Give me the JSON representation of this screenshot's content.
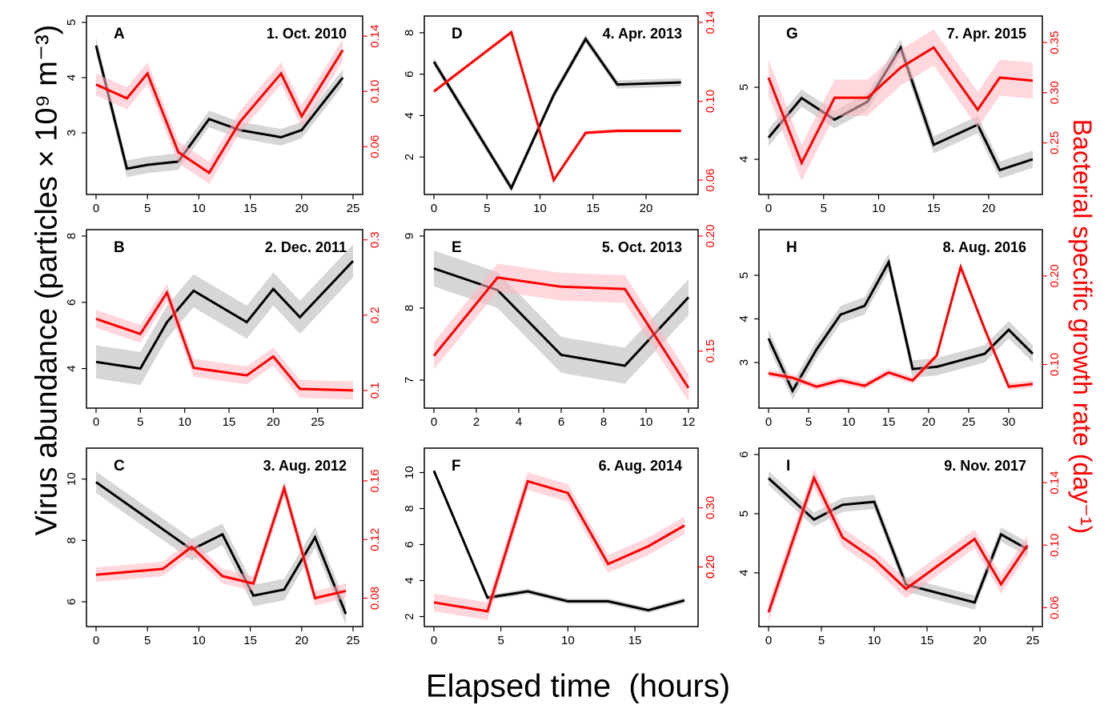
{
  "figure": {
    "ylabel": "Virus abundance (particles × 10⁹ m⁻³)",
    "ylabel2": "Bacterial specific growth rate (day⁻¹)",
    "xlabel": "Elapsed time  (hours)"
  },
  "colors": {
    "virus": "#000000",
    "virus_band": "#c8c8c8",
    "bacteria": "#ff0000",
    "bacteria_band": "#ffb6c1"
  },
  "chart_data": [
    {
      "type": "line",
      "panel": "A",
      "title": "1. Oct. 2010",
      "xlim": [
        0,
        25
      ],
      "xticks": [
        0,
        5,
        10,
        15,
        20,
        25
      ],
      "ylim": [
        2,
        5
      ],
      "yticks": [
        3,
        4,
        5
      ],
      "y2lim": [
        0.03,
        0.15
      ],
      "y2ticks": [
        "0.06",
        "0.10",
        "0.14"
      ],
      "series": [
        {
          "axis": "left",
          "x": [
            0,
            3,
            5,
            8,
            11,
            14,
            18,
            20,
            24
          ],
          "values": [
            4.58,
            2.35,
            2.42,
            2.48,
            3.25,
            3.05,
            2.92,
            3.05,
            4.0
          ],
          "band": 0.15
        },
        {
          "axis": "right",
          "x": [
            0,
            3,
            5,
            8,
            11,
            14,
            18,
            20,
            24
          ],
          "values": [
            0.105,
            0.095,
            0.113,
            0.056,
            0.041,
            0.078,
            0.113,
            0.082,
            0.13
          ],
          "band": 0.008
        }
      ]
    },
    {
      "type": "line",
      "panel": "D",
      "title": "4. Apr. 2013",
      "xlim": [
        0,
        24
      ],
      "xticks": [
        0,
        5,
        10,
        15,
        20
      ],
      "ylim": [
        0.5,
        8.5
      ],
      "yticks": [
        2,
        4,
        6,
        8
      ],
      "y2lim": [
        0.056,
        0.14
      ],
      "y2ticks": [
        "0.06",
        "0.10",
        "0.14"
      ],
      "series": [
        {
          "axis": "left",
          "x": [
            0,
            7.3,
            11.3,
            14.3,
            17.3,
            23.3
          ],
          "values": [
            6.6,
            0.5,
            5.0,
            7.7,
            5.5,
            5.6
          ],
          "band": 0.2
        },
        {
          "axis": "right",
          "x": [
            0,
            7.3,
            11.3,
            14.3,
            17.3,
            23.3
          ],
          "values": [
            0.105,
            0.135,
            0.06,
            0.084,
            0.085,
            0.085
          ],
          "band": 0.001
        }
      ]
    },
    {
      "type": "line",
      "panel": "G",
      "title": "7. Apr. 2015",
      "xlim": [
        0,
        24
      ],
      "xticks": [
        0,
        5,
        10,
        15,
        20
      ],
      "ylim": [
        3.6,
        5.9
      ],
      "yticks": [
        4,
        5
      ],
      "y2lim": [
        0.205,
        0.37
      ],
      "y2ticks": [
        "0.25",
        "0.30",
        "0.35"
      ],
      "series": [
        {
          "axis": "left",
          "x": [
            0,
            3,
            6,
            9,
            12,
            15,
            19,
            21,
            24
          ],
          "values": [
            4.3,
            4.85,
            4.55,
            4.8,
            5.55,
            4.2,
            4.48,
            3.85,
            4.0
          ],
          "band": 0.12
        },
        {
          "axis": "right",
          "x": [
            0,
            3,
            6,
            9,
            12,
            15,
            19,
            21,
            24
          ],
          "values": [
            0.315,
            0.23,
            0.295,
            0.295,
            0.325,
            0.345,
            0.283,
            0.315,
            0.312
          ],
          "band": 0.018
        }
      ]
    },
    {
      "type": "line",
      "panel": "B",
      "title": "2. Dec. 2011",
      "xlim": [
        0,
        29
      ],
      "xticks": [
        0,
        5,
        10,
        15,
        20,
        25
      ],
      "ylim": [
        3.0,
        8.0
      ],
      "yticks": [
        4,
        6,
        8
      ],
      "y2lim": [
        0.085,
        0.305
      ],
      "y2ticks": [
        "0.1",
        "0.2",
        "0.3"
      ],
      "series": [
        {
          "axis": "left",
          "x": [
            0,
            5,
            8,
            11,
            17,
            20,
            23,
            29
          ],
          "values": [
            4.2,
            4.0,
            5.4,
            6.35,
            5.4,
            6.4,
            5.55,
            7.25
          ],
          "band": 0.5
        },
        {
          "axis": "right",
          "x": [
            0,
            5,
            8,
            11,
            17,
            20,
            23,
            29
          ],
          "values": [
            0.195,
            0.175,
            0.23,
            0.13,
            0.12,
            0.145,
            0.102,
            0.1
          ],
          "band": 0.012
        }
      ]
    },
    {
      "type": "line",
      "panel": "E",
      "title": "5. Oct. 2013",
      "xlim": [
        0,
        12
      ],
      "xticks": [
        0,
        2,
        4,
        6,
        8,
        10,
        12
      ],
      "ylim": [
        6.7,
        9.0
      ],
      "yticks": [
        7,
        8,
        9
      ],
      "y2lim": [
        0.128,
        0.2
      ],
      "y2ticks": [
        "0.15",
        "0.20"
      ],
      "series": [
        {
          "axis": "left",
          "x": [
            0,
            3,
            6,
            9,
            12
          ],
          "values": [
            8.55,
            8.25,
            7.35,
            7.2,
            8.15
          ],
          "band": 0.25
        },
        {
          "axis": "right",
          "x": [
            0,
            3,
            6,
            9,
            12
          ],
          "values": [
            0.148,
            0.182,
            0.178,
            0.177,
            0.134
          ],
          "band": 0.006
        }
      ]
    },
    {
      "type": "line",
      "panel": "H",
      "title": "8. Aug. 2016",
      "xlim": [
        0,
        33
      ],
      "xticks": [
        0,
        5,
        10,
        15,
        20,
        25,
        30
      ],
      "ylim": [
        2.1,
        5.9
      ],
      "yticks": [
        3,
        4,
        5
      ],
      "y2lim": [
        0.058,
        0.245
      ],
      "y2ticks": [
        "0.10",
        "0.20"
      ],
      "series": [
        {
          "axis": "left",
          "x": [
            0,
            3,
            6,
            9,
            12,
            15,
            18,
            21,
            27,
            30,
            33
          ],
          "values": [
            3.55,
            2.35,
            3.3,
            4.1,
            4.3,
            5.3,
            2.85,
            2.9,
            3.2,
            3.75,
            3.2
          ],
          "band": 0.2
        },
        {
          "axis": "right",
          "x": [
            0,
            3,
            6,
            9,
            12,
            15,
            18,
            21,
            24,
            27,
            30,
            33
          ],
          "values": [
            0.09,
            0.085,
            0.075,
            0.082,
            0.076,
            0.091,
            0.082,
            0.11,
            0.21,
            0.14,
            0.075,
            0.078
          ],
          "band": 0.004
        }
      ]
    },
    {
      "type": "line",
      "panel": "C",
      "title": "3. Aug. 2012",
      "xlim": [
        0,
        25
      ],
      "xticks": [
        0,
        5,
        10,
        15,
        20,
        25
      ],
      "ylim": [
        5.4,
        10.8
      ],
      "yticks": [
        6,
        8,
        10
      ],
      "y2lim": [
        0.065,
        0.178
      ],
      "y2ticks": [
        "0.08",
        "0.12",
        "0.16"
      ],
      "series": [
        {
          "axis": "left",
          "x": [
            0,
            9.3,
            12.3,
            15.3,
            18.3,
            21.3,
            24.3
          ],
          "values": [
            9.9,
            7.7,
            8.2,
            6.2,
            6.4,
            8.1,
            5.6
          ],
          "band": 0.35
        },
        {
          "axis": "right",
          "x": [
            0,
            6.5,
            9.3,
            12.3,
            15.3,
            18.3,
            21.3,
            24.3
          ],
          "values": [
            0.096,
            0.1,
            0.115,
            0.095,
            0.09,
            0.155,
            0.08,
            0.085
          ],
          "band": 0.005
        }
      ]
    },
    {
      "type": "line",
      "panel": "F",
      "title": "6. Aug. 2014",
      "xlim": [
        0,
        19
      ],
      "xticks": [
        0,
        5,
        10,
        15
      ],
      "ylim": [
        1.8,
        11.0
      ],
      "yticks": [
        2,
        4,
        6,
        8,
        10
      ],
      "y2lim": [
        0.11,
        0.39
      ],
      "y2ticks": [
        "0.20",
        "0.20",
        "0.30"
      ],
      "series": [
        {
          "axis": "left",
          "x": [
            0,
            4,
            7,
            10,
            13,
            16,
            18.7
          ],
          "values": [
            10.1,
            3.05,
            3.4,
            2.85,
            2.85,
            2.35,
            2.9
          ],
          "band": 0.15
        },
        {
          "axis": "right",
          "x": [
            0,
            4,
            7,
            10,
            13,
            16,
            18.7
          ],
          "values": [
            0.14,
            0.125,
            0.345,
            0.325,
            0.205,
            0.235,
            0.27
          ],
          "band": 0.015
        }
      ]
    },
    {
      "type": "line",
      "panel": "I",
      "title": "9. Nov. 2017",
      "xlim": [
        0,
        25
      ],
      "xticks": [
        0,
        5,
        10,
        15,
        20,
        25
      ],
      "ylim": [
        3.2,
        6.0
      ],
      "yticks": [
        4,
        5,
        6
      ],
      "y2lim": [
        0.052,
        0.158
      ],
      "y2ticks": [
        "0.06",
        "0.10",
        "0.14"
      ],
      "series": [
        {
          "axis": "left",
          "x": [
            0,
            4.3,
            7,
            10,
            13,
            19.5,
            22,
            24.5
          ],
          "values": [
            5.6,
            4.9,
            5.15,
            5.2,
            3.8,
            3.5,
            4.65,
            4.4
          ],
          "band": 0.12
        },
        {
          "axis": "right",
          "x": [
            0,
            4.3,
            7,
            10,
            13,
            19.5,
            22,
            24.5
          ],
          "values": [
            0.057,
            0.143,
            0.105,
            0.091,
            0.072,
            0.104,
            0.075,
            0.1
          ],
          "band": 0.006
        }
      ]
    }
  ]
}
